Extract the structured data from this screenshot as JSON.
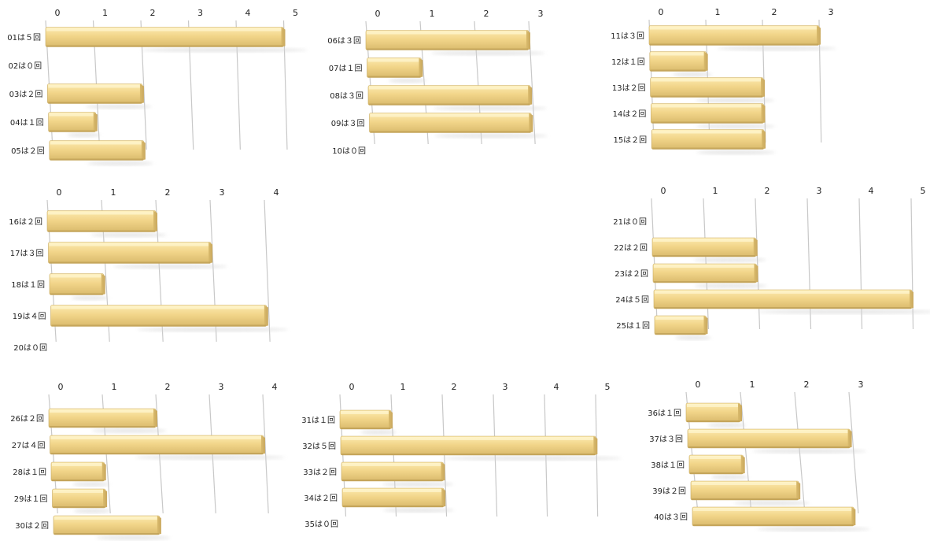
{
  "colors": {
    "bar_top": "#FCEBB0",
    "bar_mid": "#F2D58A",
    "bar_bottom": "#D9BA6C",
    "bar_end": "#C9A85E",
    "grid": "#c8c8c8"
  },
  "chart_data": [
    {
      "type": "bar",
      "categories": [
        "01は５回",
        "02は０回",
        "03は２回",
        "04は１回",
        "05は２回"
      ],
      "values": [
        5,
        0,
        2,
        1,
        2
      ],
      "ticks": [
        "0",
        "1",
        "2",
        "3",
        "4",
        "5"
      ],
      "xlim": [
        0,
        5
      ]
    },
    {
      "type": "bar",
      "categories": [
        "06は３回",
        "07は１回",
        "08は３回",
        "09は３回",
        "10は０回"
      ],
      "values": [
        3,
        1,
        3,
        3,
        0
      ],
      "ticks": [
        "0",
        "1",
        "2",
        "3"
      ],
      "xlim": [
        0,
        3
      ]
    },
    {
      "type": "bar",
      "categories": [
        "11は３回",
        "12は１回",
        "13は２回",
        "14は２回",
        "15は２回"
      ],
      "values": [
        3,
        1,
        2,
        2,
        2
      ],
      "ticks": [
        "0",
        "1",
        "2",
        "3"
      ],
      "xlim": [
        0,
        3
      ]
    },
    {
      "type": "bar",
      "categories": [
        "16は２回",
        "17は３回",
        "18は１回",
        "19は４回",
        "20は０回"
      ],
      "values": [
        2,
        3,
        1,
        4,
        0
      ],
      "ticks": [
        "0",
        "1",
        "2",
        "3",
        "4"
      ],
      "xlim": [
        0,
        4
      ]
    },
    {
      "type": "bar",
      "categories": [
        "21は０回",
        "22は２回",
        "23は２回",
        "24は５回",
        "25は１回"
      ],
      "values": [
        0,
        2,
        2,
        5,
        1
      ],
      "ticks": [
        "0",
        "1",
        "2",
        "3",
        "4",
        "5"
      ],
      "xlim": [
        0,
        5
      ]
    },
    {
      "type": "bar",
      "categories": [
        "26は２回",
        "27は４回",
        "28は１回",
        "29は１回",
        "30は２回"
      ],
      "values": [
        2,
        4,
        1,
        1,
        2
      ],
      "ticks": [
        "0",
        "1",
        "2",
        "3",
        "4"
      ],
      "xlim": [
        0,
        4
      ]
    },
    {
      "type": "bar",
      "categories": [
        "31は１回",
        "32は５回",
        "33は２回",
        "34は２回",
        "35は０回"
      ],
      "values": [
        1,
        5,
        2,
        2,
        0
      ],
      "ticks": [
        "0",
        "1",
        "2",
        "3",
        "4",
        "5"
      ],
      "xlim": [
        0,
        5
      ]
    },
    {
      "type": "bar",
      "categories": [
        "36は１回",
        "37は３回",
        "38は１回",
        "39は２回",
        "40は３回"
      ],
      "values": [
        1,
        3,
        1,
        2,
        3
      ],
      "ticks": [
        "0",
        "1",
        "2",
        "3"
      ],
      "xlim": [
        0,
        3
      ]
    }
  ]
}
